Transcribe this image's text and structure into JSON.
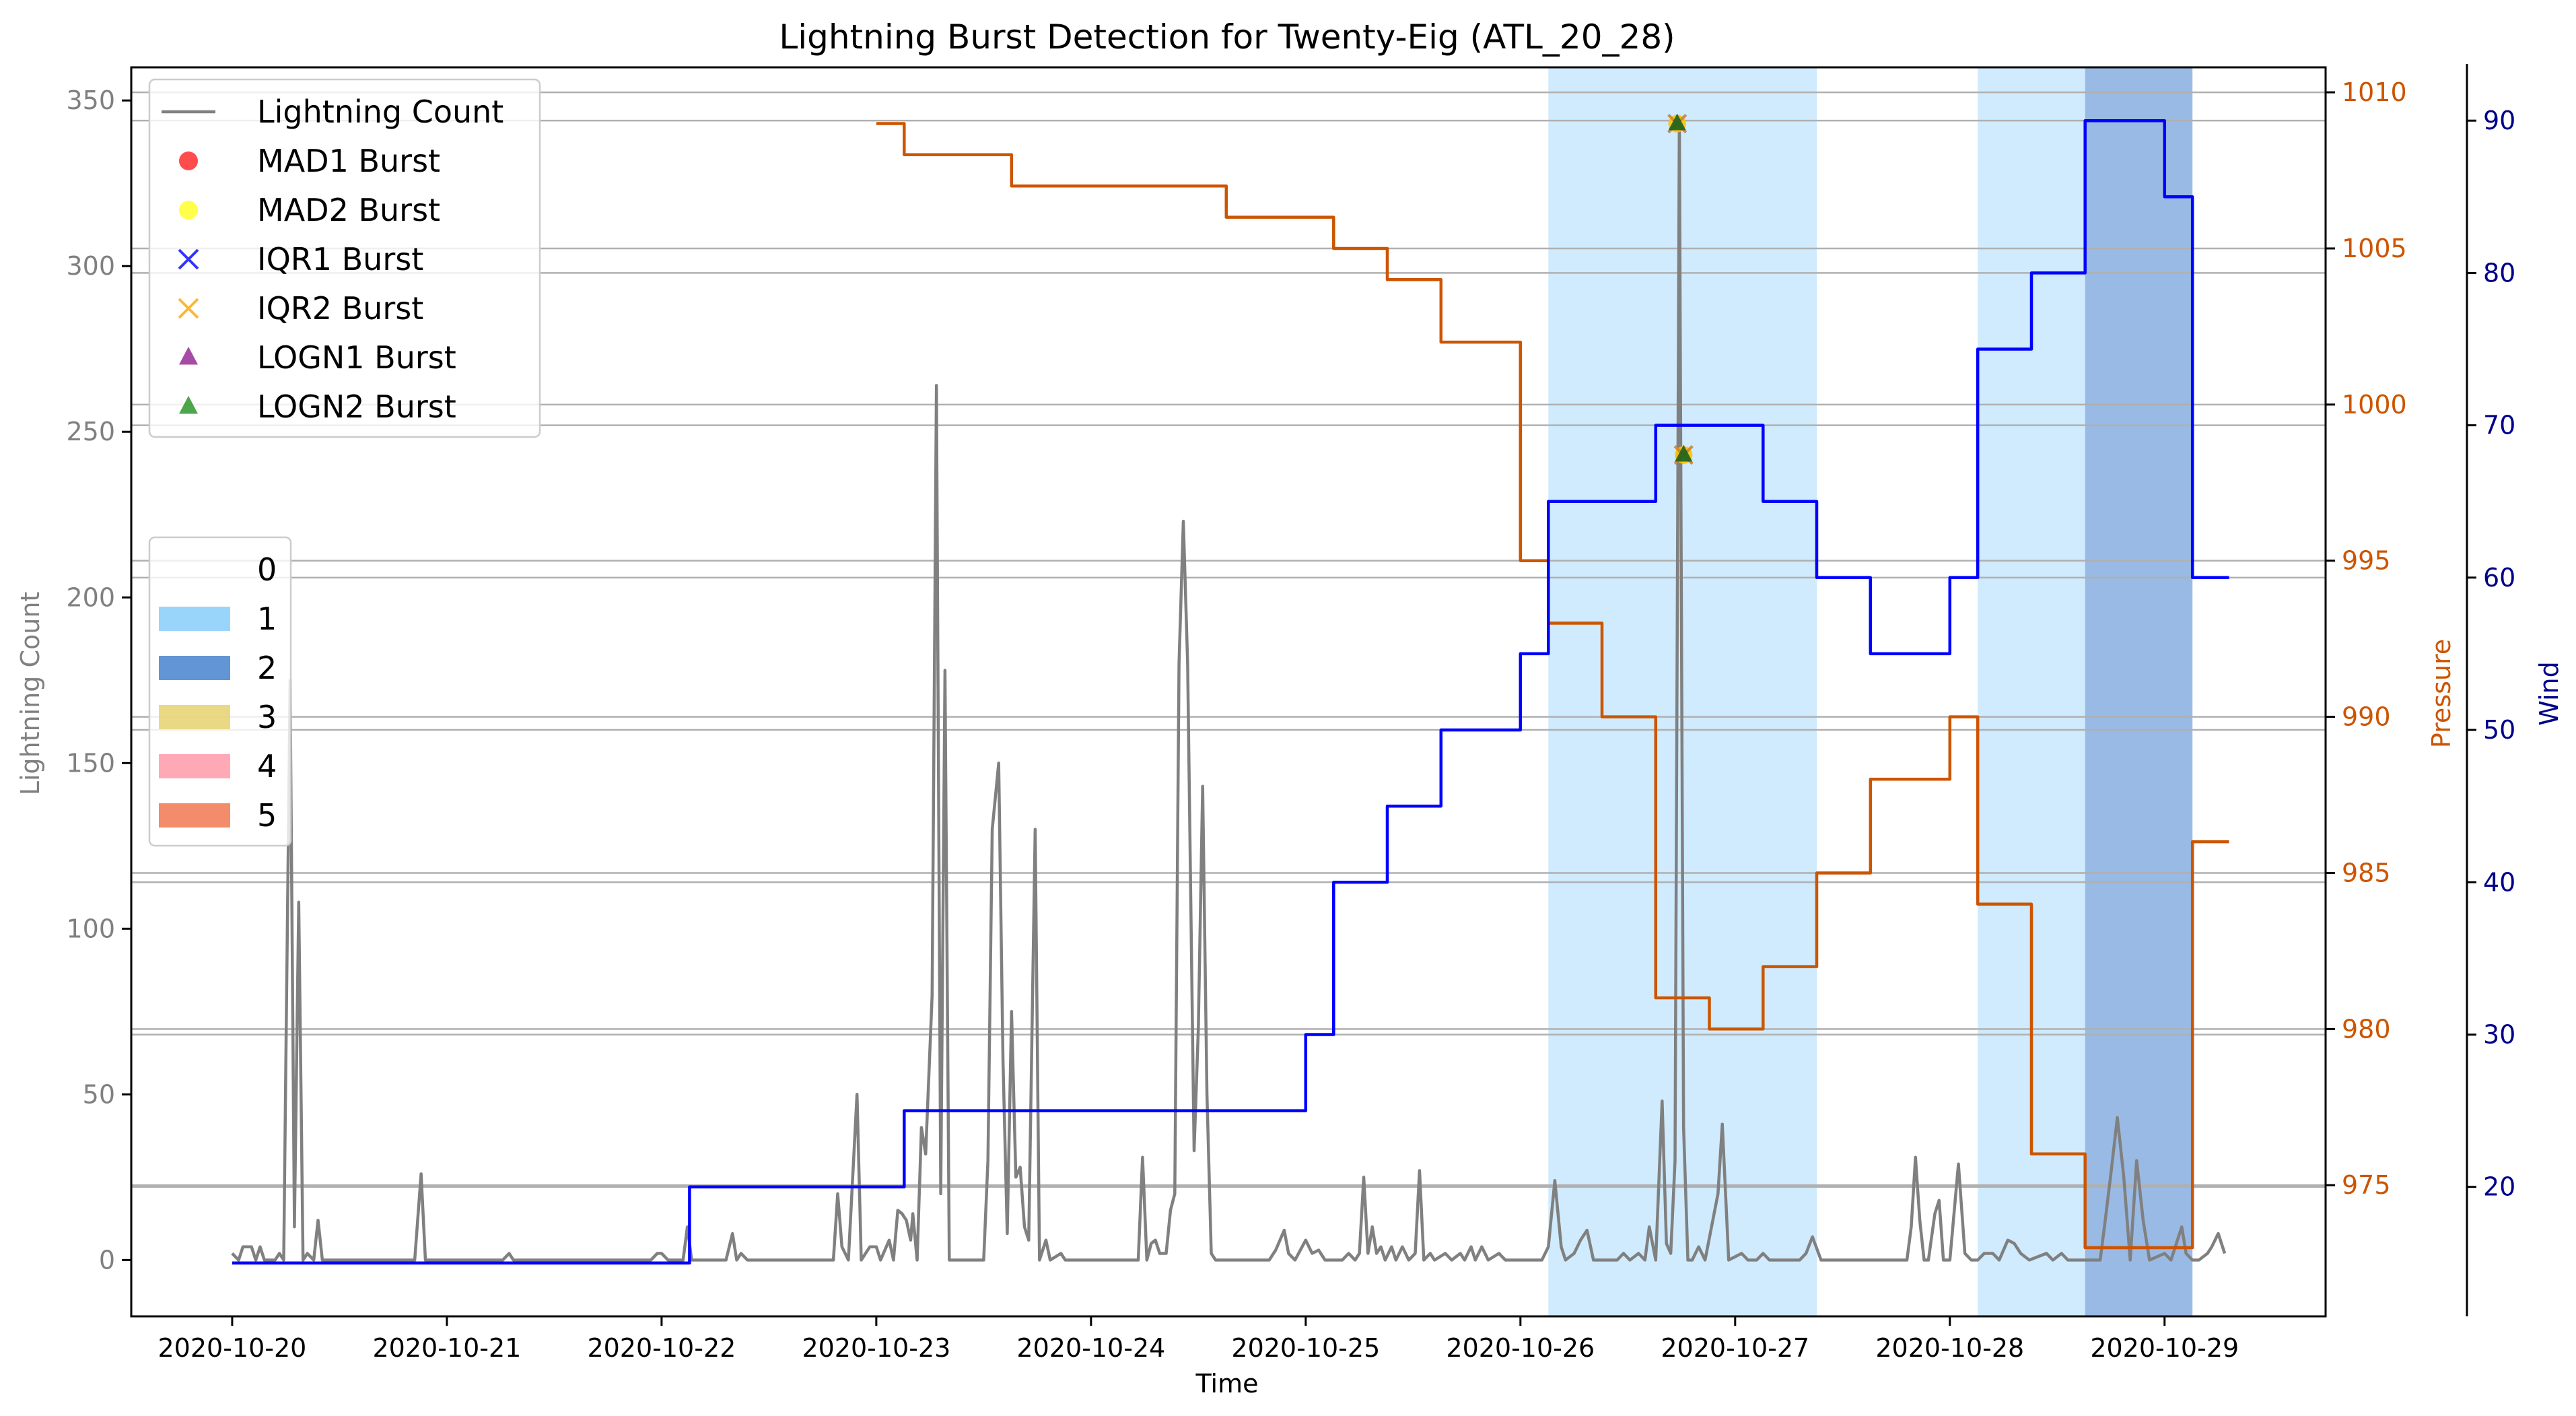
{
  "chart_data": {
    "type": "line",
    "title": "Lightning Burst Detection for Twenty-Eig (ATL_20_28)",
    "xlabel": "Time",
    "x_ticks": [
      "2020-10-20",
      "2020-10-21",
      "2020-10-22",
      "2020-10-23",
      "2020-10-24",
      "2020-10-25",
      "2020-10-26",
      "2020-10-27",
      "2020-10-28",
      "2020-10-29"
    ],
    "xlim": [
      -0.47,
      9.75
    ],
    "y_left": {
      "label": "Lightning Count",
      "color": "#808080",
      "ylim": [
        -17,
        360
      ],
      "ticks": [
        0,
        50,
        100,
        150,
        200,
        250,
        300,
        350
      ]
    },
    "y_pressure": {
      "label": "Pressure",
      "color": "#cc5500",
      "ylim": [
        970.8,
        1010.8
      ],
      "ticks": [
        975,
        980,
        985,
        990,
        995,
        1000,
        1005,
        1010
      ]
    },
    "y_wind": {
      "label": "Wind",
      "color": "#00008b",
      "ylim": [
        11.5,
        93.5
      ],
      "ticks": [
        20,
        30,
        40,
        50,
        60,
        70,
        80,
        90
      ]
    },
    "grid": "horizontal lines at right-axis ticks",
    "series": [
      {
        "name": "Lightning Count",
        "axis": "left",
        "color": "#808080",
        "points": [
          [
            0.0,
            2
          ],
          [
            0.03,
            0
          ],
          [
            0.05,
            4
          ],
          [
            0.09,
            4
          ],
          [
            0.11,
            0
          ],
          [
            0.13,
            4
          ],
          [
            0.15,
            0
          ],
          [
            0.2,
            0
          ],
          [
            0.22,
            2
          ],
          [
            0.24,
            0
          ],
          [
            0.25,
            60
          ],
          [
            0.27,
            175
          ],
          [
            0.29,
            10
          ],
          [
            0.31,
            108
          ],
          [
            0.33,
            0
          ],
          [
            0.35,
            2
          ],
          [
            0.38,
            0
          ],
          [
            0.4,
            12
          ],
          [
            0.42,
            0
          ],
          [
            0.85,
            0
          ],
          [
            0.88,
            26
          ],
          [
            0.9,
            0
          ],
          [
            1.0,
            0
          ],
          [
            1.26,
            0
          ],
          [
            1.29,
            2
          ],
          [
            1.31,
            0
          ],
          [
            1.95,
            0
          ],
          [
            1.98,
            2
          ],
          [
            2.0,
            2
          ],
          [
            2.03,
            0
          ],
          [
            2.1,
            0
          ],
          [
            2.12,
            10
          ],
          [
            2.14,
            0
          ],
          [
            2.3,
            0
          ],
          [
            2.33,
            8
          ],
          [
            2.35,
            0
          ],
          [
            2.37,
            2
          ],
          [
            2.4,
            0
          ],
          [
            2.8,
            0
          ],
          [
            2.82,
            20
          ],
          [
            2.84,
            4
          ],
          [
            2.87,
            0
          ],
          [
            2.91,
            50
          ],
          [
            2.93,
            0
          ],
          [
            2.97,
            4
          ],
          [
            3.0,
            4
          ],
          [
            3.02,
            0
          ],
          [
            3.06,
            6
          ],
          [
            3.08,
            0
          ],
          [
            3.1,
            15
          ],
          [
            3.12,
            14
          ],
          [
            3.14,
            12
          ],
          [
            3.16,
            6
          ],
          [
            3.17,
            14
          ],
          [
            3.19,
            0
          ],
          [
            3.21,
            40
          ],
          [
            3.23,
            32
          ],
          [
            3.26,
            80
          ],
          [
            3.28,
            264
          ],
          [
            3.3,
            20
          ],
          [
            3.32,
            178
          ],
          [
            3.34,
            0
          ],
          [
            3.5,
            0
          ],
          [
            3.52,
            30
          ],
          [
            3.54,
            130
          ],
          [
            3.57,
            150
          ],
          [
            3.59,
            60
          ],
          [
            3.61,
            8
          ],
          [
            3.63,
            75
          ],
          [
            3.65,
            25
          ],
          [
            3.67,
            28
          ],
          [
            3.69,
            10
          ],
          [
            3.71,
            6
          ],
          [
            3.74,
            130
          ],
          [
            3.76,
            0
          ],
          [
            3.79,
            6
          ],
          [
            3.81,
            0
          ],
          [
            3.86,
            2
          ],
          [
            3.88,
            0
          ],
          [
            4.22,
            0
          ],
          [
            4.24,
            31
          ],
          [
            4.26,
            0
          ],
          [
            4.28,
            5
          ],
          [
            4.3,
            6
          ],
          [
            4.32,
            2
          ],
          [
            4.35,
            2
          ],
          [
            4.37,
            15
          ],
          [
            4.39,
            20
          ],
          [
            4.41,
            180
          ],
          [
            4.43,
            223
          ],
          [
            4.45,
            180
          ],
          [
            4.48,
            33
          ],
          [
            4.5,
            70
          ],
          [
            4.52,
            143
          ],
          [
            4.54,
            50
          ],
          [
            4.56,
            2
          ],
          [
            4.58,
            0
          ],
          [
            4.83,
            0
          ],
          [
            4.86,
            3
          ],
          [
            4.9,
            9
          ],
          [
            4.92,
            2
          ],
          [
            4.95,
            0
          ],
          [
            5.0,
            6
          ],
          [
            5.03,
            2
          ],
          [
            5.06,
            3
          ],
          [
            5.09,
            0
          ],
          [
            5.17,
            0
          ],
          [
            5.2,
            2
          ],
          [
            5.23,
            0
          ],
          [
            5.25,
            2
          ],
          [
            5.27,
            25
          ],
          [
            5.29,
            2
          ],
          [
            5.31,
            10
          ],
          [
            5.33,
            2
          ],
          [
            5.35,
            4
          ],
          [
            5.37,
            0
          ],
          [
            5.4,
            4
          ],
          [
            5.42,
            0
          ],
          [
            5.45,
            4
          ],
          [
            5.48,
            0
          ],
          [
            5.51,
            2
          ],
          [
            5.53,
            27
          ],
          [
            5.55,
            0
          ],
          [
            5.58,
            2
          ],
          [
            5.6,
            0
          ],
          [
            5.65,
            2
          ],
          [
            5.68,
            0
          ],
          [
            5.72,
            2
          ],
          [
            5.74,
            0
          ],
          [
            5.77,
            4
          ],
          [
            5.79,
            0
          ],
          [
            5.82,
            4
          ],
          [
            5.85,
            0
          ],
          [
            5.9,
            2
          ],
          [
            5.93,
            0
          ],
          [
            6.1,
            0
          ],
          [
            6.13,
            4
          ],
          [
            6.16,
            24
          ],
          [
            6.19,
            4
          ],
          [
            6.21,
            0
          ],
          [
            6.25,
            2
          ],
          [
            6.28,
            6
          ],
          [
            6.31,
            9
          ],
          [
            6.34,
            0
          ],
          [
            6.45,
            0
          ],
          [
            6.48,
            2
          ],
          [
            6.51,
            0
          ],
          [
            6.55,
            2
          ],
          [
            6.58,
            0
          ],
          [
            6.6,
            10
          ],
          [
            6.63,
            0
          ],
          [
            6.66,
            48
          ],
          [
            6.68,
            5
          ],
          [
            6.7,
            2
          ],
          [
            6.72,
            30
          ],
          [
            6.74,
            345
          ],
          [
            6.76,
            40
          ],
          [
            6.78,
            0
          ],
          [
            6.8,
            0
          ],
          [
            6.83,
            4
          ],
          [
            6.86,
            0
          ],
          [
            6.92,
            20
          ],
          [
            6.94,
            41
          ],
          [
            6.97,
            0
          ],
          [
            7.03,
            2
          ],
          [
            7.06,
            0
          ],
          [
            7.1,
            0
          ],
          [
            7.13,
            2
          ],
          [
            7.16,
            0
          ],
          [
            7.3,
            0
          ],
          [
            7.33,
            2
          ],
          [
            7.36,
            7
          ],
          [
            7.4,
            0
          ],
          [
            7.6,
            0
          ],
          [
            7.8,
            0
          ],
          [
            7.82,
            10
          ],
          [
            7.84,
            31
          ],
          [
            7.86,
            12
          ],
          [
            7.88,
            0
          ],
          [
            7.9,
            0
          ],
          [
            7.93,
            14
          ],
          [
            7.95,
            18
          ],
          [
            7.97,
            0
          ],
          [
            8.0,
            0
          ],
          [
            8.04,
            29
          ],
          [
            8.07,
            2
          ],
          [
            8.1,
            0
          ],
          [
            8.13,
            0
          ],
          [
            8.16,
            2
          ],
          [
            8.2,
            2
          ],
          [
            8.23,
            0
          ],
          [
            8.27,
            6
          ],
          [
            8.3,
            5
          ],
          [
            8.33,
            2
          ],
          [
            8.37,
            0
          ],
          [
            8.45,
            2
          ],
          [
            8.48,
            0
          ],
          [
            8.52,
            2
          ],
          [
            8.55,
            0
          ],
          [
            8.62,
            0
          ],
          [
            8.7,
            0
          ],
          [
            8.72,
            10
          ],
          [
            8.75,
            26
          ],
          [
            8.78,
            43
          ],
          [
            8.81,
            25
          ],
          [
            8.84,
            0
          ],
          [
            8.87,
            30
          ],
          [
            8.9,
            12
          ],
          [
            8.93,
            0
          ],
          [
            9.0,
            2
          ],
          [
            9.03,
            0
          ],
          [
            9.05,
            4
          ],
          [
            9.08,
            10
          ],
          [
            9.1,
            2
          ],
          [
            9.13,
            0
          ],
          [
            9.16,
            0
          ],
          [
            9.2,
            2
          ],
          [
            9.22,
            4
          ],
          [
            9.25,
            8
          ],
          [
            9.28,
            2
          ]
        ]
      },
      {
        "name": "Pressure",
        "axis": "pressure",
        "color": "#cc5500",
        "steps": [
          [
            3.0,
            1009
          ],
          [
            3.13,
            1008
          ],
          [
            3.63,
            1007
          ],
          [
            4.63,
            1006
          ],
          [
            5.13,
            1005
          ],
          [
            5.38,
            1004
          ],
          [
            5.63,
            1002
          ],
          [
            6.0,
            995
          ],
          [
            6.13,
            993
          ],
          [
            6.38,
            990
          ],
          [
            6.63,
            981
          ],
          [
            6.88,
            980
          ],
          [
            7.0,
            980
          ],
          [
            7.13,
            982
          ],
          [
            7.38,
            985
          ],
          [
            7.63,
            988
          ],
          [
            8.0,
            990
          ],
          [
            8.13,
            984
          ],
          [
            8.38,
            976
          ],
          [
            8.63,
            973
          ],
          [
            9.13,
            986
          ],
          [
            9.3,
            986
          ]
        ]
      },
      {
        "name": "Wind",
        "axis": "wind",
        "color": "#0000ff",
        "steps": [
          [
            0.0,
            15
          ],
          [
            2.13,
            20
          ],
          [
            3.13,
            25
          ],
          [
            5.0,
            30
          ],
          [
            5.13,
            40
          ],
          [
            5.38,
            45
          ],
          [
            5.63,
            50
          ],
          [
            6.0,
            55
          ],
          [
            6.13,
            65
          ],
          [
            6.63,
            70
          ],
          [
            7.13,
            65
          ],
          [
            7.38,
            60
          ],
          [
            7.63,
            55
          ],
          [
            8.0,
            60
          ],
          [
            8.13,
            75
          ],
          [
            8.38,
            80
          ],
          [
            8.63,
            90
          ],
          [
            9.0,
            85
          ],
          [
            9.13,
            60
          ],
          [
            9.3,
            60
          ]
        ]
      }
    ],
    "bursts": [
      {
        "name": "MAD1 Burst",
        "color": "#ff0000",
        "marker": "circle",
        "points": [
          [
            6.73,
            343
          ],
          [
            6.76,
            243
          ]
        ]
      },
      {
        "name": "MAD2 Burst",
        "color": "#ffff00",
        "marker": "circle",
        "points": [
          [
            6.73,
            343
          ],
          [
            6.76,
            243
          ]
        ]
      },
      {
        "name": "IQR1 Burst",
        "color": "#0000ff",
        "marker": "x",
        "points": [
          [
            6.73,
            343
          ],
          [
            6.76,
            243
          ]
        ]
      },
      {
        "name": "IQR2 Burst",
        "color": "#ffa500",
        "marker": "x",
        "points": [
          [
            6.73,
            343
          ],
          [
            6.76,
            243
          ]
        ]
      },
      {
        "name": "LOGN1 Burst",
        "color": "#800080",
        "marker": "triangle",
        "points": [
          [
            6.73,
            343
          ],
          [
            6.76,
            243
          ]
        ]
      },
      {
        "name": "LOGN2 Burst",
        "color": "#008000",
        "marker": "triangle",
        "points": [
          [
            6.73,
            343
          ],
          [
            6.76,
            243
          ]
        ]
      }
    ],
    "category_spans": [
      {
        "category": "1",
        "x0": 6.13,
        "x1": 7.38
      },
      {
        "category": "1",
        "x0": 8.13,
        "x1": 8.63
      },
      {
        "category": "2",
        "x0": 8.63,
        "x1": 9.13
      }
    ],
    "legend_top_left": [
      "Lightning Count",
      "MAD1 Burst",
      "MAD2 Burst",
      "IQR1 Burst",
      "IQR2 Burst",
      "LOGN1 Burst",
      "LOGN2 Burst"
    ],
    "category_legend": [
      {
        "label": "0",
        "color": "#ffffff"
      },
      {
        "label": "1",
        "color": "#87cefa"
      },
      {
        "label": "2",
        "color": "#4682cd"
      },
      {
        "label": "3",
        "color": "#e6d26e"
      },
      {
        "label": "4",
        "color": "#ff9aaa"
      },
      {
        "label": "5",
        "color": "#f07850"
      }
    ],
    "legend_placement": "upper-left and center-left"
  }
}
